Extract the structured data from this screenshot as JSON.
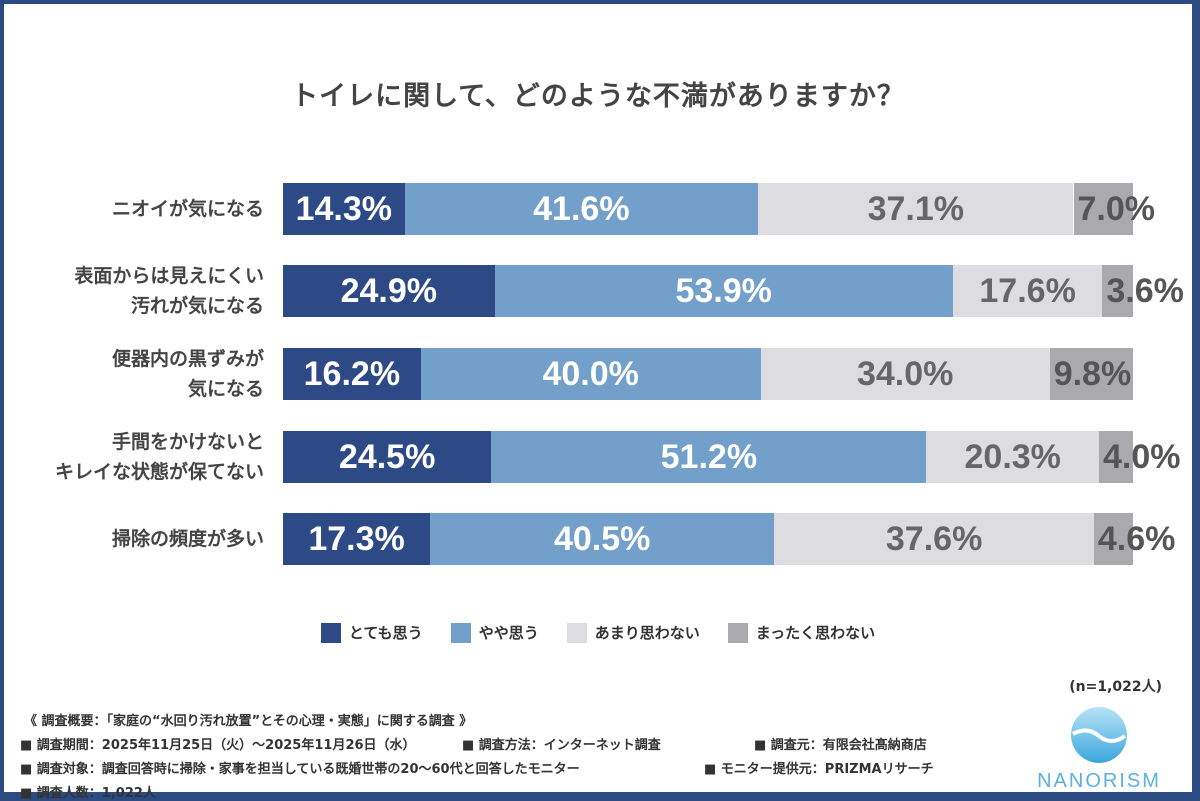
{
  "chart_data": {
    "type": "bar",
    "stacked": true,
    "orientation": "horizontal",
    "title": "トイレに関して、どのような不満がありますか？",
    "categories": [
      "ニオイが気になる",
      "表面からは見えにくい\n汚れが気になる",
      "便器内の黒ずみが\n気になる",
      "手間をかけないと\nキレイな状態が保てない",
      "掃除の頻度が多い"
    ],
    "series": [
      {
        "name": "とても思う",
        "color": "#2e4a86",
        "values": [
          14.3,
          24.9,
          16.2,
          24.5,
          17.3
        ]
      },
      {
        "name": "やや思う",
        "color": "#72a0cb",
        "values": [
          41.6,
          53.9,
          40.0,
          51.2,
          40.5
        ]
      },
      {
        "name": "あまり思わない",
        "color": "#dcdce1",
        "values": [
          37.1,
          17.6,
          34.0,
          20.3,
          37.6
        ]
      },
      {
        "name": "まったく思わない",
        "color": "#a9a9ae",
        "values": [
          7.0,
          3.6,
          9.8,
          4.0,
          4.6
        ]
      }
    ],
    "xlim": [
      0,
      100
    ],
    "legend": "bottom",
    "unit": "%"
  },
  "sample": "(n=1,022人)",
  "footer": {
    "overview": "《 調査概要：「家庭の“水回り汚れ放置”とその心理・実態」に関する調査 》",
    "period": "■ 調査期間：2025年11月25日（火）～2025年11月26日（水）",
    "method": "■ 調査方法：インターネット調査",
    "source": "■ 調査元：有限会社髙納商店",
    "target": "■ 調査対象：調査回答時に掃除・家事を担当している既婚世帯の20～60代と回答したモニター",
    "provider": "■ モニター提供元：PRIZMAリサーチ",
    "count": "■ 調査人数：1,022人"
  },
  "logo": "NANORISM"
}
